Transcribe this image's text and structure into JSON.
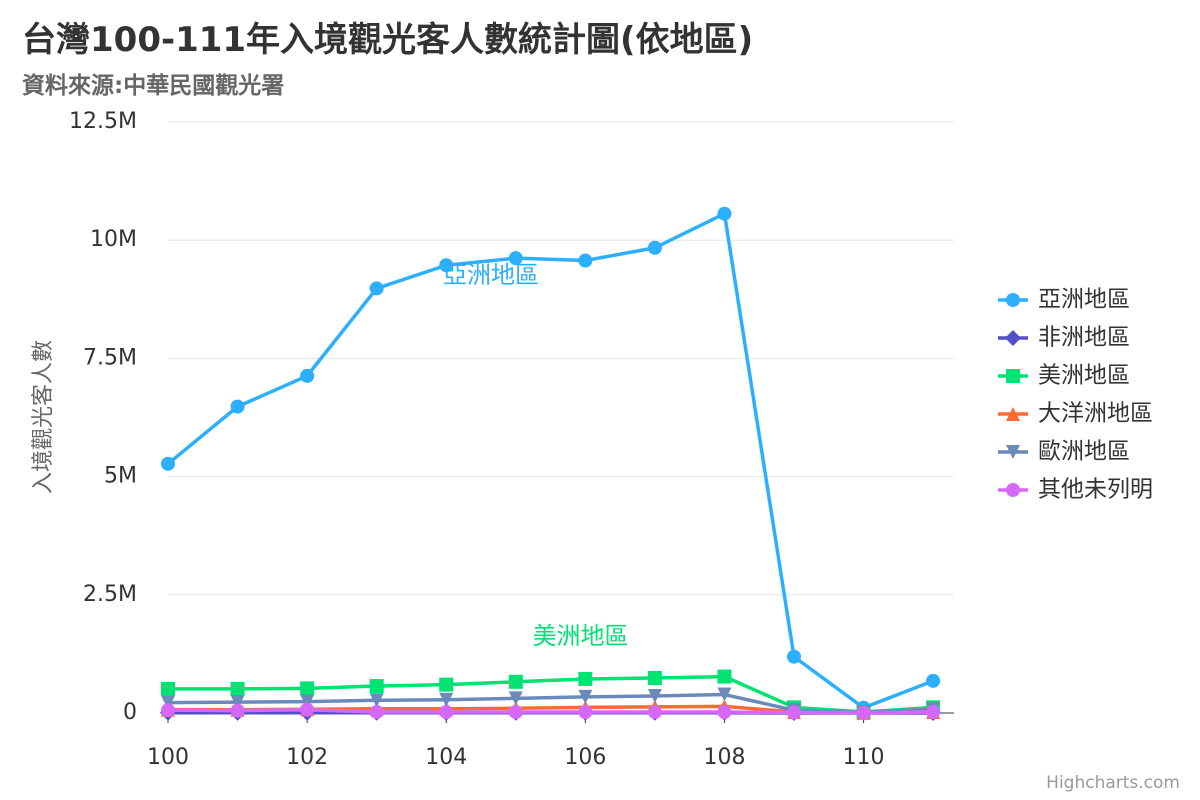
{
  "chart_data": {
    "type": "line",
    "title": "台灣100-111年入境觀光客人數統計圖(依地區)",
    "subtitle": "資料來源:中華民國觀光署",
    "xlabel": "",
    "ylabel": "入境觀光客人數",
    "x": [
      100,
      101,
      102,
      103,
      104,
      105,
      106,
      107,
      108,
      109,
      110,
      111
    ],
    "x_ticks": [
      "100",
      "102",
      "104",
      "106",
      "108",
      "110"
    ],
    "y_ticks": [
      "0",
      "2.5M",
      "5M",
      "7.5M",
      "10M",
      "12.5M"
    ],
    "ylim": [
      0,
      12500000
    ],
    "grid": true,
    "legend_position": "right",
    "series": [
      {
        "name": "亞洲地區",
        "color": "#2caffe",
        "marker": "circle",
        "values": [
          5270000,
          6480000,
          7130000,
          8980000,
          9470000,
          9620000,
          9570000,
          9840000,
          10560000,
          1190000,
          110000,
          680000
        ],
        "annotation": "亞洲地區"
      },
      {
        "name": "非洲地區",
        "color": "#544fc5",
        "marker": "diamond",
        "values": [
          4000,
          4000,
          5000,
          5000,
          5000,
          6000,
          6000,
          6000,
          6000,
          1000,
          200,
          1000
        ]
      },
      {
        "name": "美洲地區",
        "color": "#00e272",
        "marker": "square",
        "values": [
          510000,
          510000,
          520000,
          570000,
          600000,
          660000,
          720000,
          740000,
          770000,
          120000,
          20000,
          120000
        ],
        "annotation": "美洲地區"
      },
      {
        "name": "大洋洲地區",
        "color": "#fe6a35",
        "marker": "triangle",
        "values": [
          70000,
          70000,
          80000,
          90000,
          90000,
          100000,
          120000,
          130000,
          140000,
          20000,
          3000,
          20000
        ]
      },
      {
        "name": "歐洲地區",
        "color": "#6b8abc",
        "marker": "triangle-down",
        "values": [
          220000,
          230000,
          240000,
          270000,
          280000,
          310000,
          340000,
          360000,
          390000,
          60000,
          20000,
          80000
        ]
      },
      {
        "name": "其他未列明",
        "color": "#d568fb",
        "marker": "circle",
        "values": [
          60000,
          50000,
          70000,
          20000,
          20000,
          20000,
          20000,
          20000,
          20000,
          10000,
          2000,
          20000
        ]
      }
    ]
  },
  "credit": "Highcharts.com"
}
